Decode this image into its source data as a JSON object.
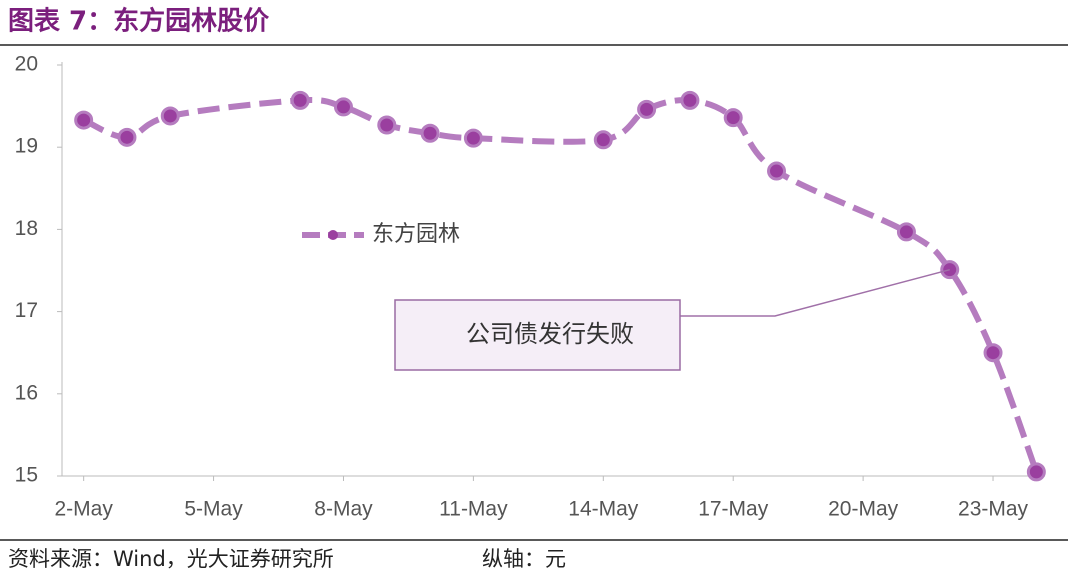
{
  "header": {
    "title": "图表 7：东方园林股价"
  },
  "chart_data": {
    "type": "line",
    "x": [
      2,
      3,
      4,
      7,
      8,
      9,
      10,
      11,
      14,
      15,
      16,
      17,
      18,
      21,
      22,
      23,
      24
    ],
    "series": [
      {
        "name": "东方园林",
        "color": "#b57cbf",
        "marker_color": "#9a3f9f",
        "values": [
          19.33,
          19.12,
          19.38,
          19.57,
          19.49,
          19.27,
          19.17,
          19.11,
          19.09,
          19.46,
          19.57,
          19.36,
          18.71,
          17.97,
          17.51,
          16.5,
          15.05
        ]
      }
    ],
    "xlim": [
      1.5,
      24.2
    ],
    "xticks": [
      {
        "value": 2,
        "label": "2-May"
      },
      {
        "value": 5,
        "label": "5-May"
      },
      {
        "value": 8,
        "label": "8-May"
      },
      {
        "value": 11,
        "label": "11-May"
      },
      {
        "value": 14,
        "label": "14-May"
      },
      {
        "value": 17,
        "label": "17-May"
      },
      {
        "value": 20,
        "label": "20-May"
      },
      {
        "value": 23,
        "label": "23-May"
      }
    ],
    "ylim": [
      15,
      20
    ],
    "yticks": [
      15,
      16,
      17,
      18,
      19,
      20
    ],
    "legend_position": "center",
    "annotation": "公司债发行失败"
  },
  "footer": {
    "source": "资料来源：Wind，光大证券研究所",
    "unit": "纵轴：元"
  }
}
